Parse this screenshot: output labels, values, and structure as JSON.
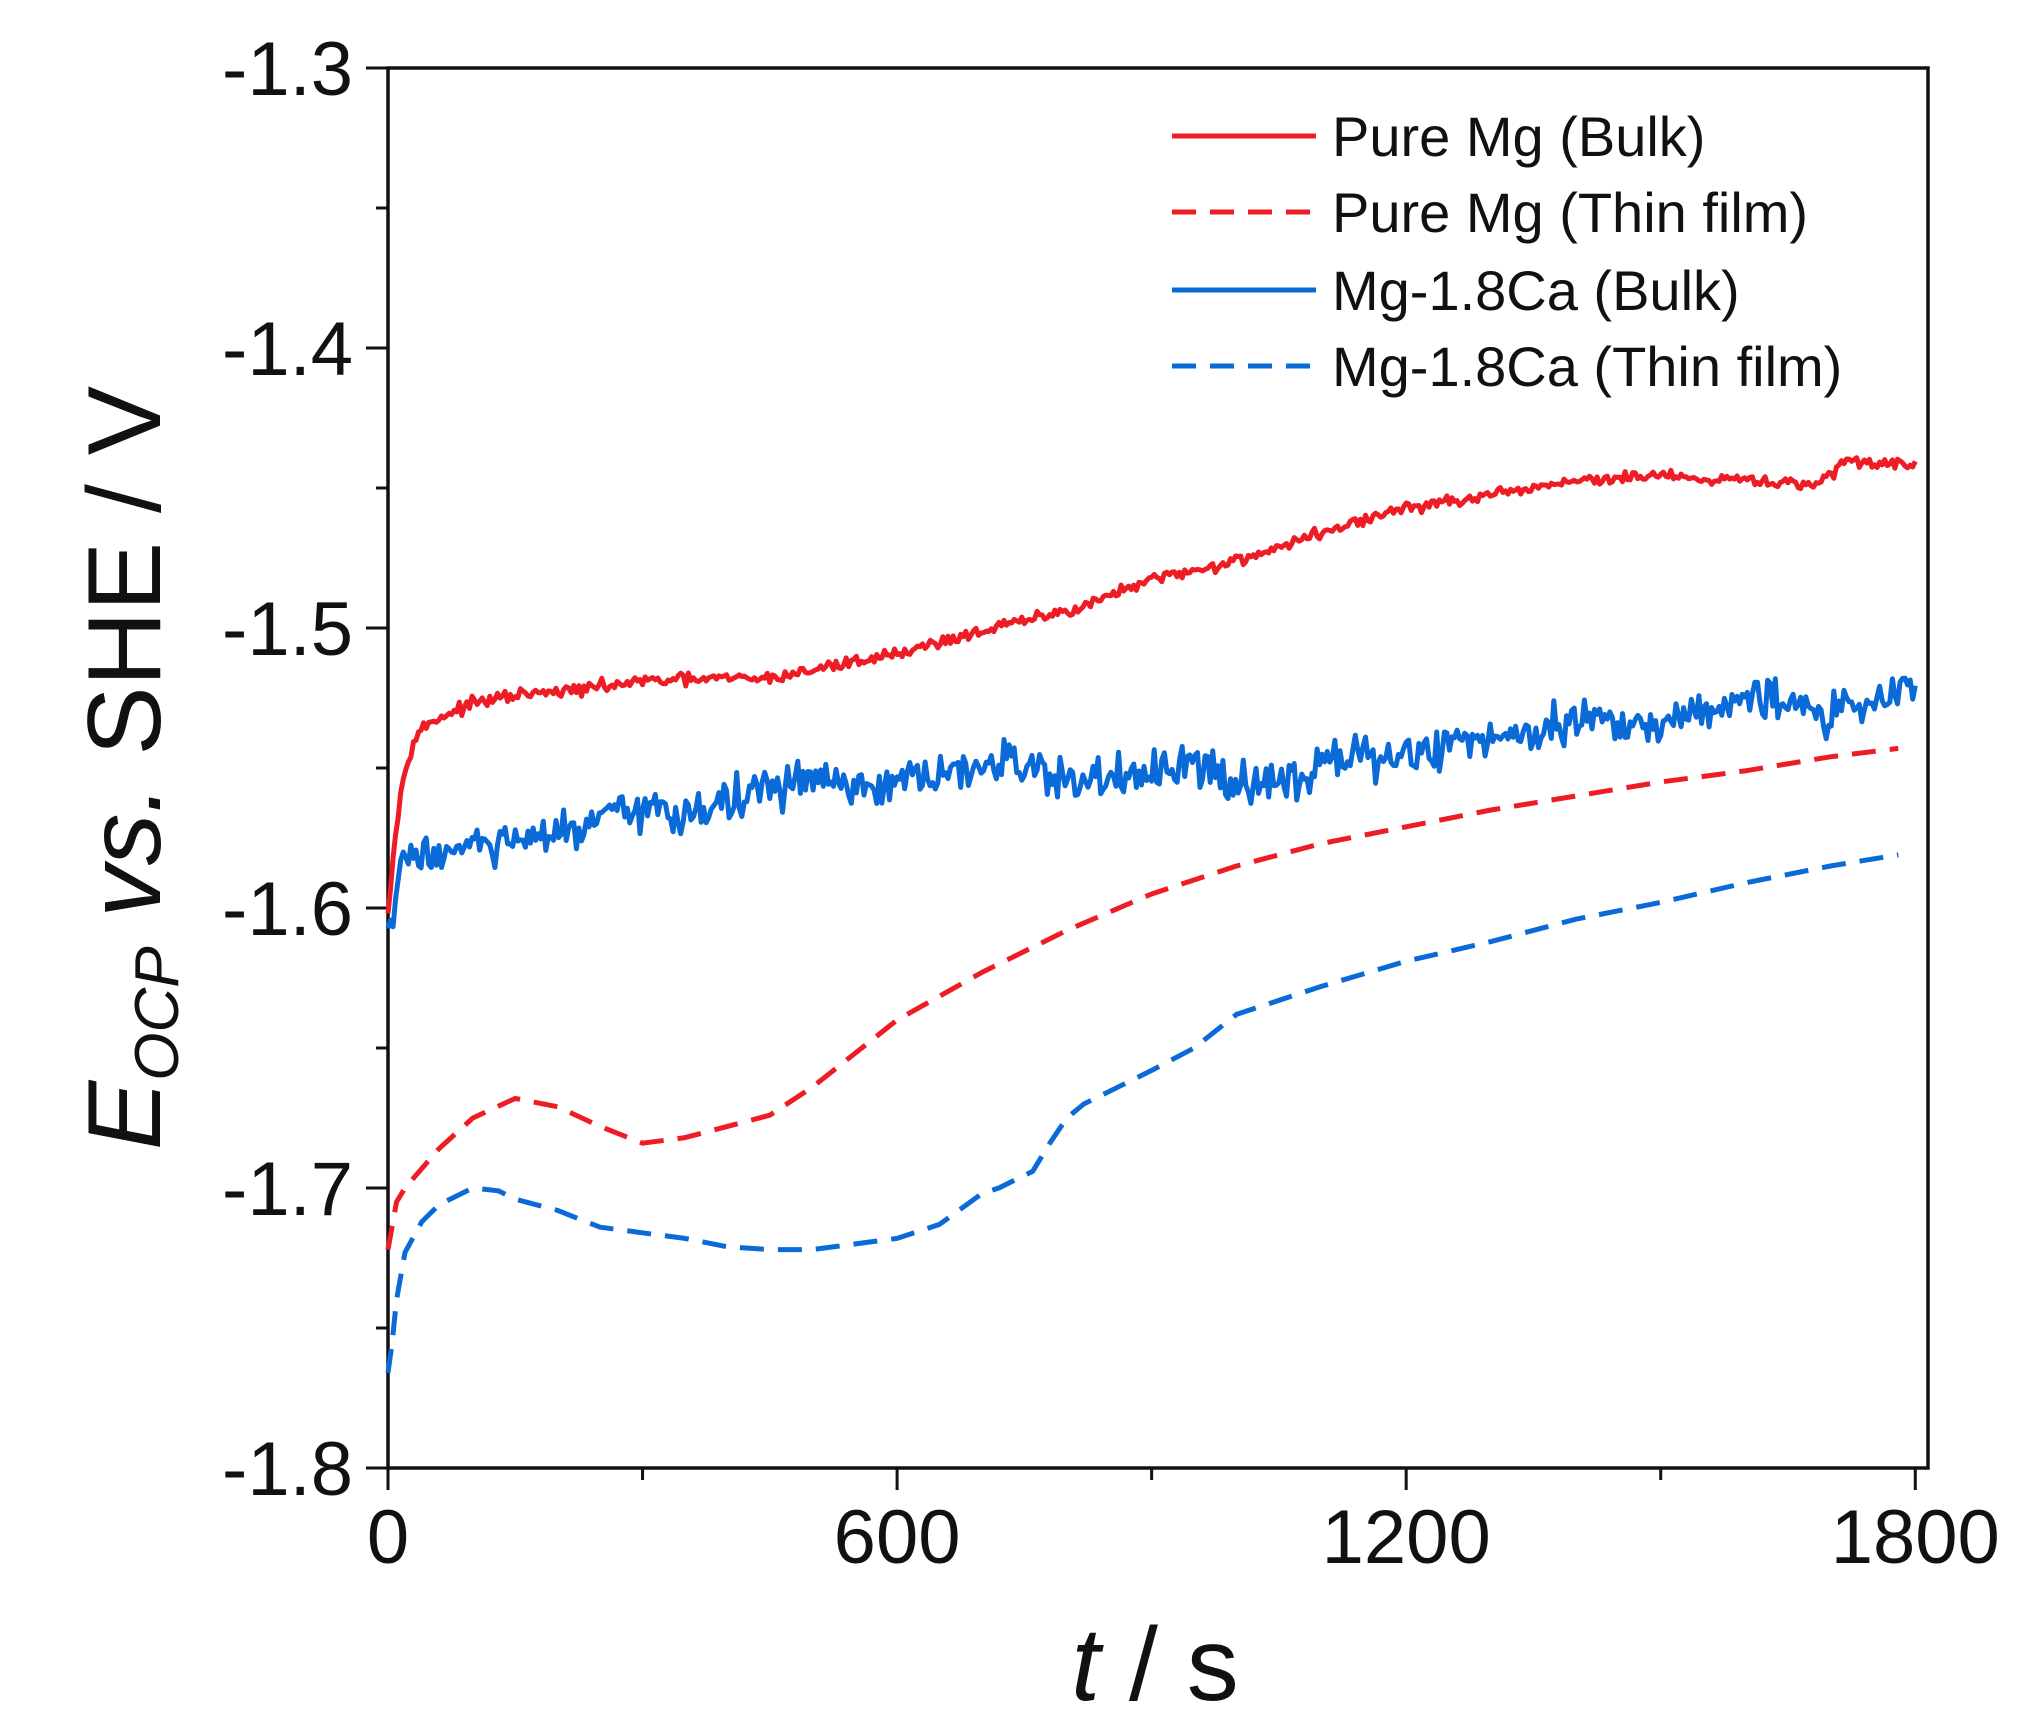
{
  "chart_data": {
    "type": "line",
    "title": "",
    "xlabel": {
      "var": "t",
      "sep": " / ",
      "unit": "s"
    },
    "ylabel": {
      "var": "E",
      "sub": "OCP",
      "mid": " vs.",
      "rest": " SHE / V"
    },
    "xlim": [
      0,
      1815
    ],
    "ylim": [
      -1.8,
      -1.3
    ],
    "xticks": [
      0,
      600,
      1200,
      1800
    ],
    "xtick_labels": [
      "0",
      "600",
      "1200",
      "1800"
    ],
    "yticks": [
      -1.3,
      -1.4,
      -1.5,
      -1.6,
      -1.7,
      -1.8
    ],
    "ytick_labels": [
      "-1.3",
      "-1.4",
      "-1.5",
      "-1.6",
      "-1.7",
      "-1.8"
    ],
    "grid": false,
    "legend_position": "top-right",
    "series": [
      {
        "name": "Pure Mg (Bulk)",
        "color": "#ee1c25",
        "style": "solid",
        "noise": 0.0015,
        "x": [
          0,
          10,
          20,
          30,
          40,
          60,
          100,
          150,
          200,
          300,
          400,
          450,
          500,
          550,
          600,
          700,
          800,
          900,
          1000,
          1100,
          1200,
          1300,
          1400,
          1450,
          1500,
          1550,
          1600,
          1650,
          1680,
          1700,
          1720,
          1750,
          1800
        ],
        "y": [
          -1.6,
          -1.57,
          -1.55,
          -1.54,
          -1.536,
          -1.532,
          -1.527,
          -1.524,
          -1.523,
          -1.519,
          -1.518,
          -1.518,
          -1.515,
          -1.512,
          -1.509,
          -1.501,
          -1.494,
          -1.483,
          -1.476,
          -1.466,
          -1.457,
          -1.453,
          -1.447,
          -1.447,
          -1.445,
          -1.448,
          -1.447,
          -1.448,
          -1.45,
          -1.445,
          -1.44,
          -1.441,
          -1.441
        ]
      },
      {
        "name": "Pure Mg (Thin film)",
        "color": "#ee1c25",
        "style": "dashed",
        "noise": 0,
        "x": [
          0,
          10,
          20,
          40,
          60,
          100,
          150,
          200,
          250,
          300,
          350,
          400,
          450,
          500,
          550,
          600,
          700,
          800,
          900,
          1000,
          1100,
          1200,
          1300,
          1400,
          1500,
          1600,
          1700,
          1780
        ],
        "y": [
          -1.722,
          -1.705,
          -1.7,
          -1.693,
          -1.686,
          -1.675,
          -1.668,
          -1.671,
          -1.678,
          -1.684,
          -1.682,
          -1.678,
          -1.674,
          -1.664,
          -1.652,
          -1.64,
          -1.623,
          -1.608,
          -1.595,
          -1.585,
          -1.577,
          -1.571,
          -1.565,
          -1.56,
          -1.555,
          -1.551,
          -1.546,
          -1.543
        ]
      },
      {
        "name": "Mg-1.8Ca (Bulk)",
        "color": "#0a6ad8",
        "style": "solid",
        "noise": 0.0055,
        "x": [
          0,
          10,
          20,
          30,
          50,
          100,
          150,
          200,
          300,
          350,
          400,
          500,
          550,
          600,
          700,
          750,
          800,
          900,
          950,
          1000,
          1050,
          1100,
          1200,
          1300,
          1350,
          1400,
          1450,
          1500,
          1550,
          1600,
          1650,
          1700,
          1750,
          1800
        ],
        "y": [
          -1.61,
          -1.595,
          -1.583,
          -1.58,
          -1.581,
          -1.578,
          -1.577,
          -1.574,
          -1.565,
          -1.566,
          -1.562,
          -1.553,
          -1.559,
          -1.556,
          -1.55,
          -1.548,
          -1.555,
          -1.553,
          -1.549,
          -1.556,
          -1.553,
          -1.549,
          -1.545,
          -1.539,
          -1.536,
          -1.532,
          -1.533,
          -1.535,
          -1.528,
          -1.524,
          -1.528,
          -1.531,
          -1.525,
          -1.522
        ]
      },
      {
        "name": "Mg-1.8Ca (Thin film)",
        "color": "#0a6ad8",
        "style": "dashed",
        "noise": 0,
        "x": [
          0,
          5,
          10,
          20,
          40,
          60,
          100,
          130,
          150,
          200,
          250,
          300,
          350,
          400,
          450,
          500,
          550,
          600,
          650,
          700,
          720,
          760,
          780,
          800,
          820,
          900,
          950,
          1000,
          1050,
          1100,
          1200,
          1300,
          1400,
          1500,
          1600,
          1700,
          1780
        ],
        "y": [
          -1.766,
          -1.755,
          -1.74,
          -1.723,
          -1.712,
          -1.706,
          -1.7,
          -1.701,
          -1.704,
          -1.708,
          -1.714,
          -1.716,
          -1.718,
          -1.721,
          -1.722,
          -1.722,
          -1.72,
          -1.718,
          -1.713,
          -1.702,
          -1.7,
          -1.694,
          -1.684,
          -1.675,
          -1.67,
          -1.658,
          -1.65,
          -1.638,
          -1.633,
          -1.628,
          -1.619,
          -1.612,
          -1.604,
          -1.598,
          -1.591,
          -1.585,
          -1.581
        ]
      }
    ]
  }
}
